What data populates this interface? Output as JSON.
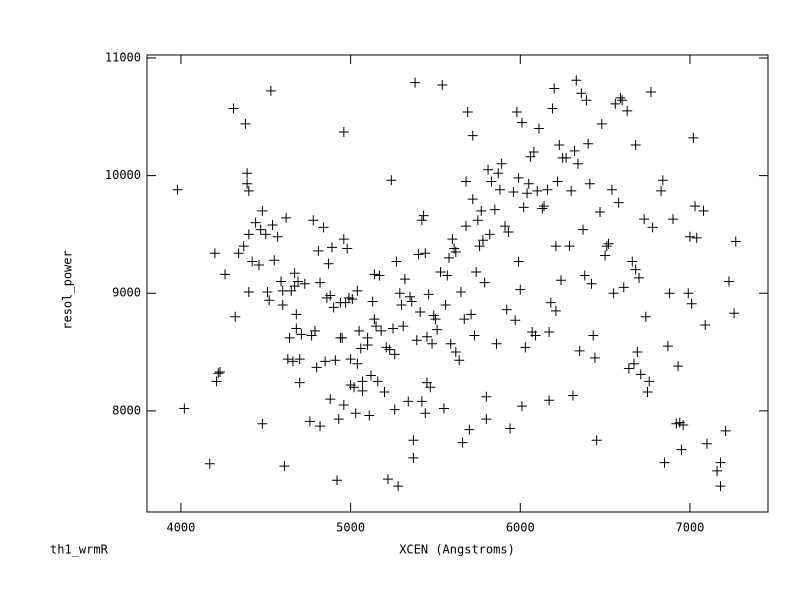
{
  "chart_data": {
    "type": "scatter",
    "color": "#000000",
    "xlabel": "XCEN (Angstroms)",
    "ylabel": "resol_power",
    "note": "th1_wrmR",
    "xlim": [
      3800,
      7460
    ],
    "ylim": [
      7140,
      11025
    ],
    "xticks": [
      4000,
      5000,
      6000,
      7000
    ],
    "yticks": [
      8000,
      9000,
      10000,
      11000
    ],
    "x": [
      3980,
      4020,
      4170,
      4200,
      4210,
      4220,
      4230,
      4260,
      4310,
      4320,
      4340,
      4370,
      4380,
      4390,
      4390,
      4400,
      4400,
      4400,
      4420,
      4440,
      4460,
      4470,
      4480,
      4480,
      4500,
      4510,
      4520,
      4530,
      4540,
      4550,
      4570,
      4590,
      4600,
      4600,
      4610,
      4620,
      4630,
      4640,
      4650,
      4660,
      4670,
      4670,
      4680,
      4680,
      4690,
      4700,
      4700,
      4710,
      4730,
      4760,
      4770,
      4780,
      4790,
      4800,
      4810,
      4820,
      4820,
      4840,
      4850,
      4860,
      4870,
      4880,
      4880,
      4890,
      4900,
      4910,
      4920,
      4930,
      4940,
      4940,
      4950,
      4960,
      4960,
      4960,
      4970,
      4980,
      4990,
      5000,
      5000,
      5010,
      5020,
      5030,
      5040,
      5040,
      5050,
      5060,
      5070,
      5070,
      5100,
      5100,
      5110,
      5120,
      5130,
      5140,
      5140,
      5150,
      5160,
      5170,
      5180,
      5200,
      5210,
      5220,
      5230,
      5240,
      5250,
      5260,
      5260,
      5270,
      5280,
      5290,
      5300,
      5310,
      5320,
      5340,
      5350,
      5360,
      5370,
      5370,
      5380,
      5390,
      5400,
      5410,
      5420,
      5420,
      5430,
      5440,
      5440,
      5450,
      5450,
      5460,
      5470,
      5480,
      5490,
      5500,
      5510,
      5530,
      5540,
      5550,
      5560,
      5570,
      5580,
      5590,
      5600,
      5610,
      5620,
      5620,
      5640,
      5650,
      5660,
      5670,
      5680,
      5680,
      5690,
      5700,
      5710,
      5720,
      5720,
      5730,
      5740,
      5750,
      5760,
      5770,
      5780,
      5790,
      5800,
      5800,
      5810,
      5820,
      5830,
      5850,
      5860,
      5870,
      5880,
      5890,
      5910,
      5920,
      5930,
      5940,
      5960,
      5970,
      5980,
      5990,
      5990,
      6000,
      6010,
      6010,
      6020,
      6030,
      6040,
      6050,
      6060,
      6070,
      6080,
      6090,
      6100,
      6110,
      6130,
      6140,
      6160,
      6170,
      6170,
      6180,
      6190,
      6200,
      6210,
      6210,
      6220,
      6230,
      6240,
      6250,
      6270,
      6290,
      6300,
      6310,
      6320,
      6330,
      6340,
      6350,
      6360,
      6370,
      6380,
      6390,
      6400,
      6410,
      6420,
      6430,
      6440,
      6450,
      6470,
      6480,
      6500,
      6510,
      6520,
      6540,
      6550,
      6560,
      6580,
      6590,
      6600,
      6610,
      6630,
      6640,
      6660,
      6670,
      6680,
      6680,
      6690,
      6700,
      6710,
      6730,
      6740,
      6750,
      6760,
      6770,
      6780,
      6830,
      6840,
      6850,
      6870,
      6880,
      6900,
      6920,
      6930,
      6940,
      6950,
      6960,
      6990,
      7000,
      7010,
      7020,
      7030,
      7040,
      7080,
      7090,
      7100,
      7160,
      7180,
      7180,
      7210,
      7230,
      7260,
      7270
    ],
    "y": [
      9880,
      8020,
      7550,
      9340,
      8250,
      8320,
      8330,
      9160,
      10570,
      8800,
      9340,
      9400,
      10440,
      10020,
      9930,
      9870,
      9010,
      9500,
      9270,
      9600,
      9240,
      9540,
      9700,
      7890,
      9500,
      9010,
      8940,
      10720,
      9580,
      9280,
      9480,
      9100,
      9020,
      8900,
      7530,
      9640,
      8440,
      8620,
      9020,
      8420,
      9060,
      9170,
      8700,
      8820,
      9100,
      8240,
      8440,
      8650,
      9080,
      7910,
      8640,
      9620,
      8680,
      8370,
      9360,
      9090,
      7870,
      9560,
      8420,
      8960,
      9250,
      8100,
      8980,
      9390,
      8880,
      8430,
      7410,
      7930,
      8620,
      8920,
      8620,
      10370,
      9460,
      8050,
      8920,
      9380,
      8960,
      8220,
      8440,
      8950,
      8200,
      7980,
      9020,
      8400,
      8680,
      8530,
      8250,
      8170,
      8560,
      8620,
      7960,
      8300,
      8930,
      8780,
      9160,
      8720,
      8250,
      9150,
      8680,
      8160,
      8540,
      7420,
      8520,
      9960,
      8700,
      8010,
      8480,
      9270,
      7360,
      9000,
      8900,
      8720,
      9120,
      8080,
      8970,
      8930,
      7750,
      7600,
      10790,
      8600,
      9330,
      8840,
      9620,
      8080,
      9660,
      7980,
      9340,
      8630,
      8240,
      8990,
      8200,
      8570,
      8810,
      8780,
      8690,
      9180,
      10770,
      8020,
      8900,
      9150,
      9300,
      8570,
      9460,
      9380,
      8500,
      9350,
      8430,
      9010,
      7730,
      8780,
      9570,
      9950,
      10540,
      7840,
      8820,
      9800,
      10340,
      8640,
      9180,
      9620,
      9400,
      9700,
      9450,
      9090,
      8120,
      7930,
      10050,
      9500,
      9950,
      9710,
      8570,
      10020,
      9880,
      10100,
      9570,
      8860,
      9520,
      7850,
      9860,
      8770,
      10540,
      9270,
      9980,
      9030,
      10450,
      8040,
      9730,
      8540,
      9850,
      9930,
      10160,
      8670,
      10200,
      8640,
      9870,
      10400,
      9720,
      9740,
      9880,
      8090,
      8670,
      8920,
      10570,
      10740,
      9400,
      8850,
      9950,
      10260,
      9110,
      10150,
      10150,
      9400,
      9870,
      8130,
      10210,
      10810,
      10100,
      8510,
      10700,
      9540,
      9150,
      10640,
      10270,
      9930,
      9080,
      8640,
      8450,
      7750,
      9690,
      10440,
      9320,
      9400,
      9420,
      9880,
      9000,
      10610,
      9770,
      10660,
      10640,
      9050,
      10550,
      8360,
      9270,
      8400,
      9200,
      10260,
      8500,
      9130,
      8310,
      9630,
      8800,
      8160,
      8250,
      10710,
      9560,
      9870,
      9960,
      7560,
      8550,
      9000,
      9630,
      7890,
      8380,
      7900,
      7670,
      7880,
      9000,
      9480,
      8910,
      10320,
      9740,
      9470,
      9700,
      8730,
      7720,
      7490,
      7560,
      7360,
      7830,
      9100,
      8830,
      9440
    ]
  }
}
